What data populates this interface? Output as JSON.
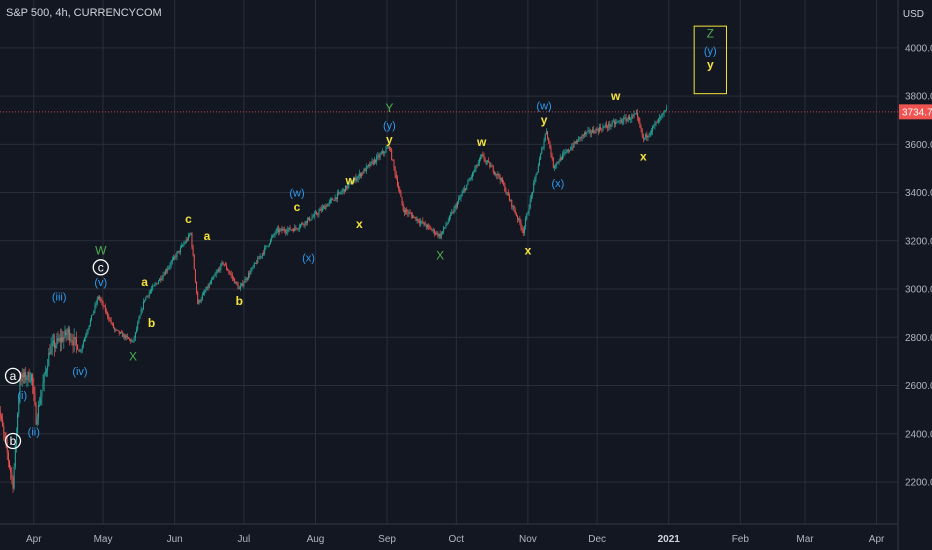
{
  "header": {
    "title": "S&P 500, 4h, CURRENCYCOM",
    "currency": "USD"
  },
  "colors": {
    "background": "#131722",
    "grid": "#2a2e39",
    "axis_text": "#b2b5be",
    "up": "#26a69a",
    "down": "#ef5350",
    "price_tag": "#ef5350",
    "yellow": "#f5e33a",
    "blue": "#2f9bf0",
    "green": "#4caf50",
    "white": "#ffffff"
  },
  "chart_data": {
    "type": "candlestick",
    "title": "S&P 500, 4h, CURRENCYCOM",
    "ylim": [
      2100,
      4200
    ],
    "y_ticks": [
      "2200.0",
      "2400.0",
      "2600.0",
      "2800.0",
      "3000.0",
      "3200.0",
      "3400.0",
      "3600.0",
      "3800.0",
      "4000.0"
    ],
    "x_ticks": [
      "Apr",
      "May",
      "Jun",
      "Jul",
      "Aug",
      "Sep",
      "Oct",
      "Nov",
      "Dec",
      "2021",
      "Feb",
      "Mar",
      "Apr"
    ],
    "last_price": "3734.7",
    "price_path": [
      [
        "2020-03-16",
        2550
      ],
      [
        "2020-03-23",
        2190
      ],
      [
        "2020-03-26",
        2630
      ],
      [
        "2020-03-31",
        2640
      ],
      [
        "2020-04-02",
        2460
      ],
      [
        "2020-04-08",
        2750
      ],
      [
        "2020-04-16",
        2820
      ],
      [
        "2020-04-21",
        2740
      ],
      [
        "2020-04-29",
        2970
      ],
      [
        "2020-05-06",
        2830
      ],
      [
        "2020-05-14",
        2780
      ],
      [
        "2020-05-19",
        2960
      ],
      [
        "2020-05-27",
        3060
      ],
      [
        "2020-06-08",
        3230
      ],
      [
        "2020-06-11",
        2940
      ],
      [
        "2020-06-22",
        3110
      ],
      [
        "2020-06-29",
        3000
      ],
      [
        "2020-07-15",
        3240
      ],
      [
        "2020-07-23",
        3250
      ],
      [
        "2020-07-31",
        3300
      ],
      [
        "2020-08-12",
        3400
      ],
      [
        "2020-09-02",
        3590
      ],
      [
        "2020-09-08",
        3330
      ],
      [
        "2020-09-24",
        3220
      ],
      [
        "2020-10-12",
        3550
      ],
      [
        "2020-10-20",
        3460
      ],
      [
        "2020-10-30",
        3240
      ],
      [
        "2020-11-09",
        3660
      ],
      [
        "2020-11-12",
        3510
      ],
      [
        "2020-11-25",
        3640
      ],
      [
        "2020-12-18",
        3720
      ],
      [
        "2020-12-21",
        3620
      ],
      [
        "2020-12-31",
        3740
      ]
    ],
    "annotations": [
      {
        "text": "a",
        "date": "2020-03-23",
        "price": 2640,
        "color": "white",
        "circled": true
      },
      {
        "text": "b",
        "date": "2020-03-23",
        "price": 2370,
        "color": "white",
        "circled": true
      },
      {
        "text": "(i)",
        "date": "2020-03-27",
        "price": 2560,
        "color": "blue"
      },
      {
        "text": "(ii)",
        "date": "2020-04-01",
        "price": 2410,
        "color": "blue"
      },
      {
        "text": "(iii)",
        "date": "2020-04-12",
        "price": 2970,
        "color": "blue"
      },
      {
        "text": "(iv)",
        "date": "2020-04-21",
        "price": 2660,
        "color": "blue"
      },
      {
        "text": "(v)",
        "date": "2020-04-30",
        "price": 3030,
        "color": "blue"
      },
      {
        "text": "c",
        "date": "2020-04-30",
        "price": 3090,
        "color": "white",
        "circled": true
      },
      {
        "text": "W",
        "date": "2020-04-30",
        "price": 3160,
        "color": "green"
      },
      {
        "text": "X",
        "date": "2020-05-14",
        "price": 2720,
        "color": "green"
      },
      {
        "text": "a",
        "date": "2020-05-19",
        "price": 3030,
        "color": "yellow"
      },
      {
        "text": "b",
        "date": "2020-05-22",
        "price": 2860,
        "color": "yellow"
      },
      {
        "text": "c",
        "date": "2020-06-07",
        "price": 3290,
        "color": "yellow"
      },
      {
        "text": "a",
        "date": "2020-06-15",
        "price": 3220,
        "color": "yellow"
      },
      {
        "text": "b",
        "date": "2020-06-29",
        "price": 2950,
        "color": "yellow"
      },
      {
        "text": "(w)",
        "date": "2020-07-24",
        "price": 3400,
        "color": "blue"
      },
      {
        "text": "c",
        "date": "2020-07-24",
        "price": 3340,
        "color": "yellow"
      },
      {
        "text": "(x)",
        "date": "2020-07-29",
        "price": 3130,
        "color": "blue"
      },
      {
        "text": "w",
        "date": "2020-08-16",
        "price": 3450,
        "color": "yellow"
      },
      {
        "text": "x",
        "date": "2020-08-20",
        "price": 3270,
        "color": "yellow"
      },
      {
        "text": "Y",
        "date": "2020-09-02",
        "price": 3750,
        "color": "green"
      },
      {
        "text": "(y)",
        "date": "2020-09-02",
        "price": 3680,
        "color": "blue"
      },
      {
        "text": "y",
        "date": "2020-09-02",
        "price": 3620,
        "color": "yellow"
      },
      {
        "text": "X",
        "date": "2020-09-24",
        "price": 3140,
        "color": "green"
      },
      {
        "text": "w",
        "date": "2020-10-12",
        "price": 3610,
        "color": "yellow"
      },
      {
        "text": "x",
        "date": "2020-11-01",
        "price": 3160,
        "color": "yellow"
      },
      {
        "text": "(w)",
        "date": "2020-11-08",
        "price": 3760,
        "color": "blue"
      },
      {
        "text": "y",
        "date": "2020-11-08",
        "price": 3700,
        "color": "yellow"
      },
      {
        "text": "(x)",
        "date": "2020-11-14",
        "price": 3440,
        "color": "blue"
      },
      {
        "text": "w",
        "date": "2020-12-09",
        "price": 3800,
        "color": "yellow"
      },
      {
        "text": "x",
        "date": "2020-12-21",
        "price": 3550,
        "color": "yellow"
      },
      {
        "text": "Z",
        "date": "2021-01-19",
        "price": 4060,
        "color": "green"
      },
      {
        "text": "(y)",
        "date": "2021-01-19",
        "price": 3990,
        "color": "blue"
      },
      {
        "text": "y",
        "date": "2021-01-19",
        "price": 3930,
        "color": "yellow"
      }
    ],
    "target_box": {
      "date_start": "2021-01-12",
      "date_end": "2021-01-26",
      "price_low": 3810,
      "price_high": 4090,
      "color": "yellow"
    }
  }
}
